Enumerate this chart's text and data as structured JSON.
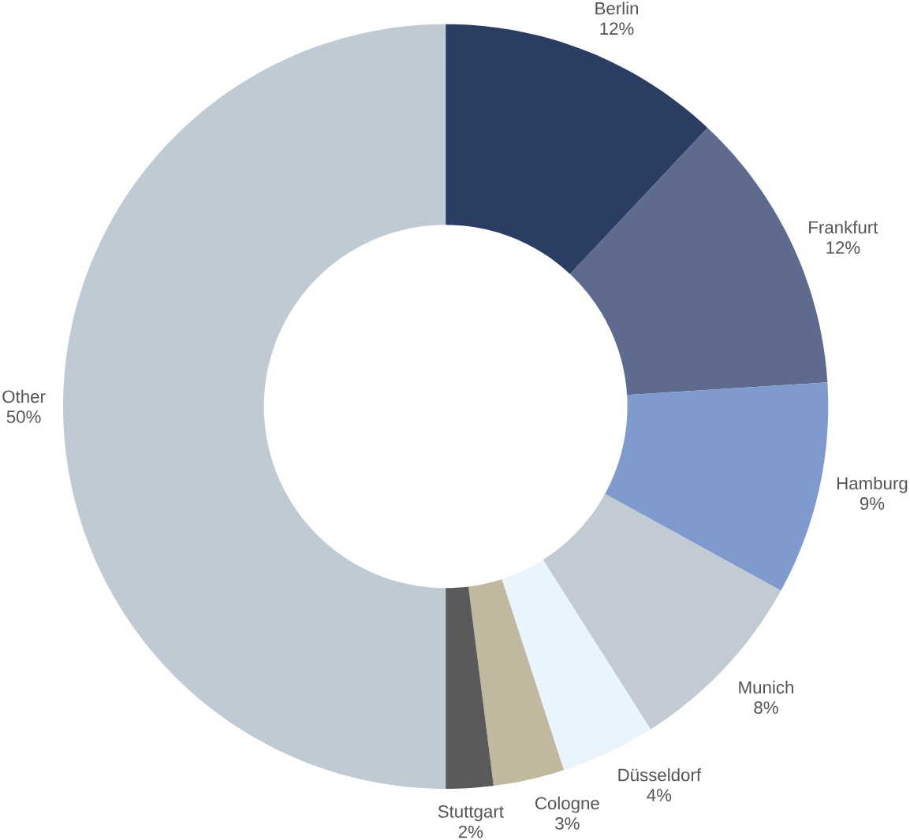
{
  "chart_data": {
    "type": "donut",
    "categories": [
      "Berlin",
      "Frankfurt",
      "Hamburg",
      "Munich",
      "Düsseldorf",
      "Cologne",
      "Stuttgart",
      "Other"
    ],
    "values": [
      12,
      12,
      9,
      8,
      4,
      3,
      2,
      50
    ],
    "value_labels": [
      "12%",
      "12%",
      "9%",
      "8%",
      "4%",
      "3%",
      "2%",
      "50%"
    ],
    "colors": [
      "#2b3d63",
      "#5e6a8e",
      "#7f9acd",
      "#c2cad4",
      "#eaf4fc",
      "#c0b9a0",
      "#5a5a5a",
      "#c0cad4"
    ]
  }
}
